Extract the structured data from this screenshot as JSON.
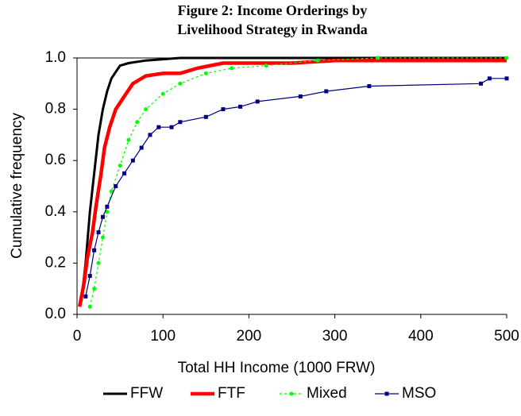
{
  "chart_data": {
    "type": "line",
    "title": [
      "Figure 2: Income Orderings by",
      "Livelihood Strategy in Rwanda"
    ],
    "xlabel": "Total HH Income (1000 FRW)",
    "ylabel": "Cumulative frequency",
    "xlim": [
      0,
      500
    ],
    "xticks": [
      0,
      100,
      200,
      300,
      400,
      500
    ],
    "ylim": [
      0,
      1
    ],
    "yticks": [
      {
        "value": 0,
        "label": "0.0"
      },
      0.2,
      0.4,
      0.6,
      0.8,
      {
        "value": 1,
        "label": "1.0"
      }
    ],
    "legend": "bottom",
    "series": [
      {
        "name": "FFW",
        "color": "#000000",
        "marker": "none",
        "x": [
          5,
          10,
          15,
          20,
          25,
          30,
          35,
          40,
          50,
          60,
          80,
          120,
          500
        ],
        "values": [
          0.05,
          0.2,
          0.4,
          0.55,
          0.7,
          0.8,
          0.87,
          0.92,
          0.97,
          0.98,
          0.99,
          1.0,
          1.0
        ]
      },
      {
        "name": "FTF",
        "color": "#ff0000",
        "marker": "none",
        "x": [
          3,
          8,
          12,
          18,
          22,
          28,
          32,
          38,
          45,
          55,
          65,
          80,
          100,
          120,
          140,
          170,
          250,
          300,
          500
        ],
        "values": [
          0.03,
          0.12,
          0.22,
          0.32,
          0.42,
          0.55,
          0.65,
          0.73,
          0.8,
          0.85,
          0.9,
          0.93,
          0.94,
          0.94,
          0.96,
          0.98,
          0.98,
          0.99,
          0.99
        ]
      },
      {
        "name": "Mixed",
        "color": "#00ff00",
        "marker": "circle",
        "x": [
          15,
          20,
          25,
          30,
          35,
          40,
          50,
          60,
          70,
          80,
          100,
          120,
          150,
          180,
          220,
          280,
          350,
          500
        ],
        "values": [
          0.03,
          0.1,
          0.2,
          0.3,
          0.4,
          0.48,
          0.58,
          0.68,
          0.75,
          0.8,
          0.86,
          0.9,
          0.94,
          0.96,
          0.97,
          0.99,
          1.0,
          1.0
        ]
      },
      {
        "name": "MSO",
        "color": "#000080",
        "marker": "square",
        "x": [
          10,
          15,
          20,
          25,
          30,
          35,
          45,
          55,
          65,
          75,
          85,
          95,
          110,
          120,
          150,
          170,
          190,
          210,
          260,
          290,
          340,
          470,
          480,
          500
        ],
        "values": [
          0.07,
          0.15,
          0.25,
          0.32,
          0.38,
          0.42,
          0.5,
          0.55,
          0.6,
          0.65,
          0.7,
          0.73,
          0.73,
          0.75,
          0.77,
          0.8,
          0.81,
          0.83,
          0.85,
          0.87,
          0.89,
          0.9,
          0.92,
          0.92
        ]
      }
    ]
  }
}
